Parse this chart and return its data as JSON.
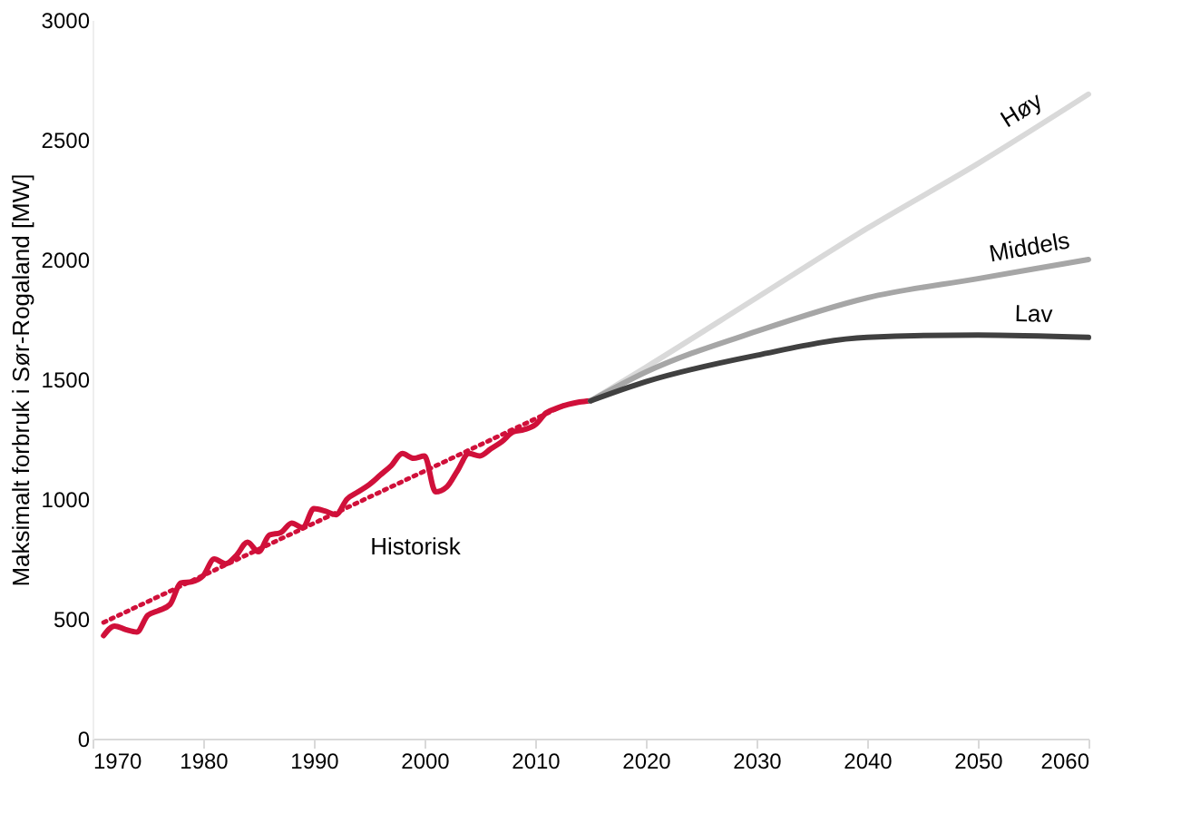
{
  "chart_data": {
    "type": "line",
    "ylabel": "Maksimalt forbruk i Sør-Rogaland [MW]",
    "xlim": [
      1970,
      2060
    ],
    "xticks": [
      1970,
      1980,
      1990,
      2000,
      2010,
      2020,
      2030,
      2040,
      2050,
      2060
    ],
    "ylim": [
      0,
      3000
    ],
    "yticks": [
      0,
      500,
      1000,
      1500,
      2000,
      2500,
      3000
    ],
    "grid": false,
    "series": [
      {
        "name": "Historisk",
        "color": "#d0103a",
        "x": [
          1971,
          1972,
          1973,
          1974,
          1975,
          1976,
          1977,
          1978,
          1979,
          1980,
          1981,
          1982,
          1983,
          1984,
          1985,
          1986,
          1987,
          1988,
          1989,
          1990,
          1991,
          1992,
          1993,
          1994,
          1995,
          1996,
          1997,
          1998,
          1999,
          2000,
          2001,
          2002,
          2003,
          2004,
          2005,
          2006,
          2007,
          2008,
          2009,
          2010,
          2011,
          2012,
          2013,
          2014,
          2015
        ],
        "values": [
          430,
          470,
          455,
          445,
          515,
          535,
          560,
          650,
          655,
          680,
          750,
          730,
          765,
          820,
          780,
          850,
          860,
          900,
          880,
          960,
          950,
          935,
          1000,
          1030,
          1060,
          1100,
          1140,
          1190,
          1170,
          1180,
          1030,
          1050,
          1120,
          1190,
          1180,
          1210,
          1240,
          1280,
          1290,
          1310,
          1360,
          1380,
          1395,
          1405,
          1410
        ]
      },
      {
        "color": "#d0103a",
        "line_style": "dotted",
        "x": [
          1971,
          2013
        ],
        "values": [
          485,
          1400
        ]
      },
      {
        "name": "Høy",
        "color": "#d9d9d9",
        "x": [
          2015,
          2020,
          2030,
          2040,
          2050,
          2060
        ],
        "values": [
          1410,
          1550,
          1840,
          2130,
          2400,
          2690
        ]
      },
      {
        "name": "Middels",
        "color": "#a6a6a6",
        "x": [
          2015,
          2020,
          2030,
          2040,
          2050,
          2060
        ],
        "values": [
          1410,
          1530,
          1700,
          1840,
          1920,
          2000
        ]
      },
      {
        "name": "Lav",
        "color": "#404040",
        "x": [
          2015,
          2020,
          2030,
          2040,
          2050,
          2060
        ],
        "values": [
          1410,
          1490,
          1600,
          1675,
          1685,
          1675
        ]
      }
    ]
  }
}
